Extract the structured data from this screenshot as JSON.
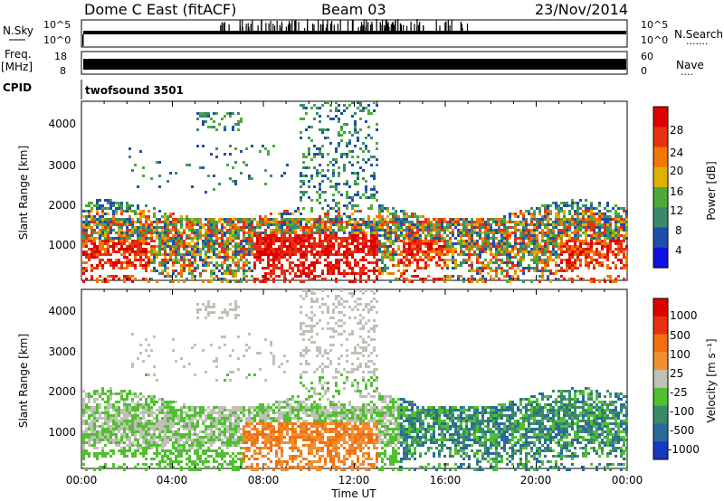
{
  "header": {
    "site": "Dome C East (fitACF)",
    "beam": "Beam 03",
    "date": "23/Nov/2014"
  },
  "sky_panel": {
    "left_label": "N.Sky",
    "right_label": "N.Search",
    "right_dots": "·······",
    "left_ticks": [
      "10^5",
      "10^0"
    ],
    "right_ticks": [
      "10^5",
      "10^0"
    ]
  },
  "freq_panel": {
    "left_label_top": "Freq.",
    "left_label_unit": "[MHz]",
    "right_label": "Nave",
    "right_dots": "····",
    "left_ticks": [
      "18",
      "8"
    ],
    "right_ticks": [
      "60",
      "0"
    ]
  },
  "cpid_panel": {
    "label": "CPID",
    "program": "twofsound 3501"
  },
  "x_axis": {
    "label": "Time UT",
    "ticks": [
      "00:00",
      "04:00",
      "08:00",
      "12:00",
      "16:00",
      "20:00",
      "00:00"
    ]
  },
  "power_panel": {
    "ylabel": "Slant Range [km]",
    "yticks": [
      "4000",
      "3000",
      "2000",
      "1000"
    ],
    "colorbar_label": "Power [dB]",
    "colorbar_ticks": [
      "28",
      "24",
      "20",
      "16",
      "12",
      "8",
      "4"
    ],
    "colors": [
      "#1010e0",
      "#1e4fa8",
      "#3a8a6a",
      "#4caa3a",
      "#e0b000",
      "#f07800",
      "#e83010",
      "#e00000"
    ]
  },
  "velocity_panel": {
    "ylabel": "Slant Range [km]",
    "yticks": [
      "4000",
      "3000",
      "2000",
      "1000"
    ],
    "colorbar_label": "Velocity [m s⁻¹]",
    "colorbar_ticks": [
      "1000",
      "500",
      "100",
      "25",
      "-25",
      "-100",
      "-500",
      "-1000"
    ],
    "colors": [
      "#1838c0",
      "#2a6a9a",
      "#3a8a6a",
      "#50c030",
      "#c0c0b8",
      "#f09030",
      "#f07010",
      "#e83010",
      "#e00000"
    ]
  },
  "chart_data": [
    {
      "type": "heatmap",
      "name": "Power",
      "x_range_hours": [
        0,
        24
      ],
      "y_range_km": [
        180,
        4500
      ],
      "color_range_db": [
        0,
        31
      ],
      "dominant_band_km": [
        600,
        2000
      ],
      "note_regions": [
        {
          "x_hours": [
            7.5,
            12
          ],
          "range_km": [
            300,
            1200
          ],
          "level_db": 28
        },
        {
          "x_hours": [
            10,
            13
          ],
          "range_km": [
            1500,
            3300
          ],
          "level_db": 12
        }
      ]
    },
    {
      "type": "heatmap",
      "name": "Velocity",
      "x_range_hours": [
        0,
        24
      ],
      "y_range_km": [
        180,
        4500
      ],
      "color_range_ms": [
        -1000,
        1000
      ],
      "dominant_band_km": [
        400,
        2300
      ]
    }
  ]
}
